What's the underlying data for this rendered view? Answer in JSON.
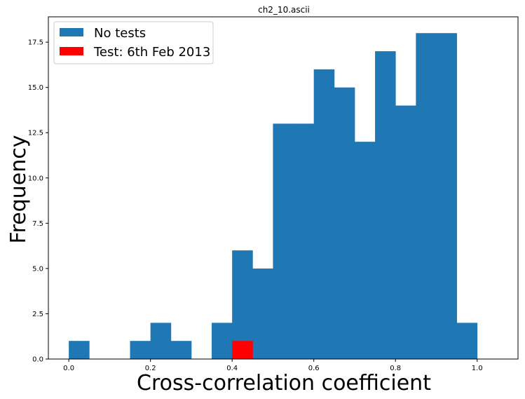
{
  "chart_data": {
    "type": "bar",
    "title": "ch2_10.ascii",
    "xlabel": "Cross-correlation coefficient",
    "ylabel": "Frequency",
    "xlim": [
      -0.05,
      1.1
    ],
    "ylim": [
      0,
      18.9
    ],
    "grid": false,
    "legend_position": "top-left",
    "bin_width": 0.05,
    "xticks": [
      0.0,
      0.2,
      0.4,
      0.6,
      0.8,
      1.0
    ],
    "xtick_labels": [
      "0.0",
      "0.2",
      "0.4",
      "0.6",
      "0.8",
      "1.0"
    ],
    "yticks": [
      0.0,
      2.5,
      5.0,
      7.5,
      10.0,
      12.5,
      15.0,
      17.5
    ],
    "ytick_labels": [
      "0.0",
      "2.5",
      "5.0",
      "7.5",
      "10.0",
      "12.5",
      "15.0",
      "17.5"
    ],
    "series": [
      {
        "name": "No tests",
        "color": "#1f77b4",
        "bin_edges": [
          0.0,
          0.05,
          0.1,
          0.15,
          0.2,
          0.25,
          0.3,
          0.35,
          0.4,
          0.45,
          0.5,
          0.55,
          0.6,
          0.65,
          0.7,
          0.75,
          0.8,
          0.85,
          0.9,
          0.95,
          1.0
        ],
        "values": [
          1,
          0,
          0,
          1,
          2,
          1,
          0,
          2,
          6,
          5,
          13,
          13,
          16,
          15,
          12,
          17,
          14,
          18,
          18,
          2
        ]
      },
      {
        "name": "Test: 6th Feb 2013",
        "color": "#ff0000",
        "bin_edges": [
          0.4,
          0.45
        ],
        "values": [
          1
        ]
      }
    ]
  }
}
